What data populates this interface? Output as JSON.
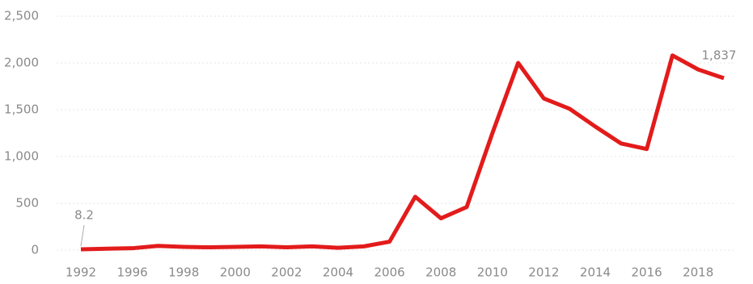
{
  "chart_data": {
    "type": "line",
    "categories": [
      "1992",
      null,
      "1996",
      null,
      "1998",
      null,
      "2000",
      null,
      "2002",
      null,
      "2004",
      null,
      "2006",
      null,
      "2008",
      null,
      "2010",
      null,
      "2012",
      null,
      "2014",
      null,
      "2016",
      null,
      "2018",
      null
    ],
    "values": [
      8.2,
      15,
      20,
      45,
      35,
      30,
      35,
      40,
      30,
      40,
      25,
      40,
      90,
      570,
      340,
      460,
      1250,
      2000,
      1620,
      1510,
      1320,
      1140,
      1080,
      2080,
      1930,
      1837
    ],
    "value_labels": [
      "8.2",
      null,
      null,
      null,
      null,
      null,
      null,
      null,
      null,
      null,
      null,
      null,
      null,
      null,
      null,
      null,
      null,
      null,
      null,
      null,
      null,
      null,
      null,
      null,
      null,
      "1,837"
    ],
    "color": "#e31b1b",
    "ylim": [
      0,
      2500
    ],
    "yticks": [
      0,
      500,
      {
        "value": 1000,
        "label": "1,000"
      },
      {
        "value": 1500,
        "label": "1,500"
      },
      {
        "value": 2000,
        "label": "2,000"
      },
      {
        "value": 2500,
        "label": "2,500"
      }
    ],
    "grid": true
  }
}
